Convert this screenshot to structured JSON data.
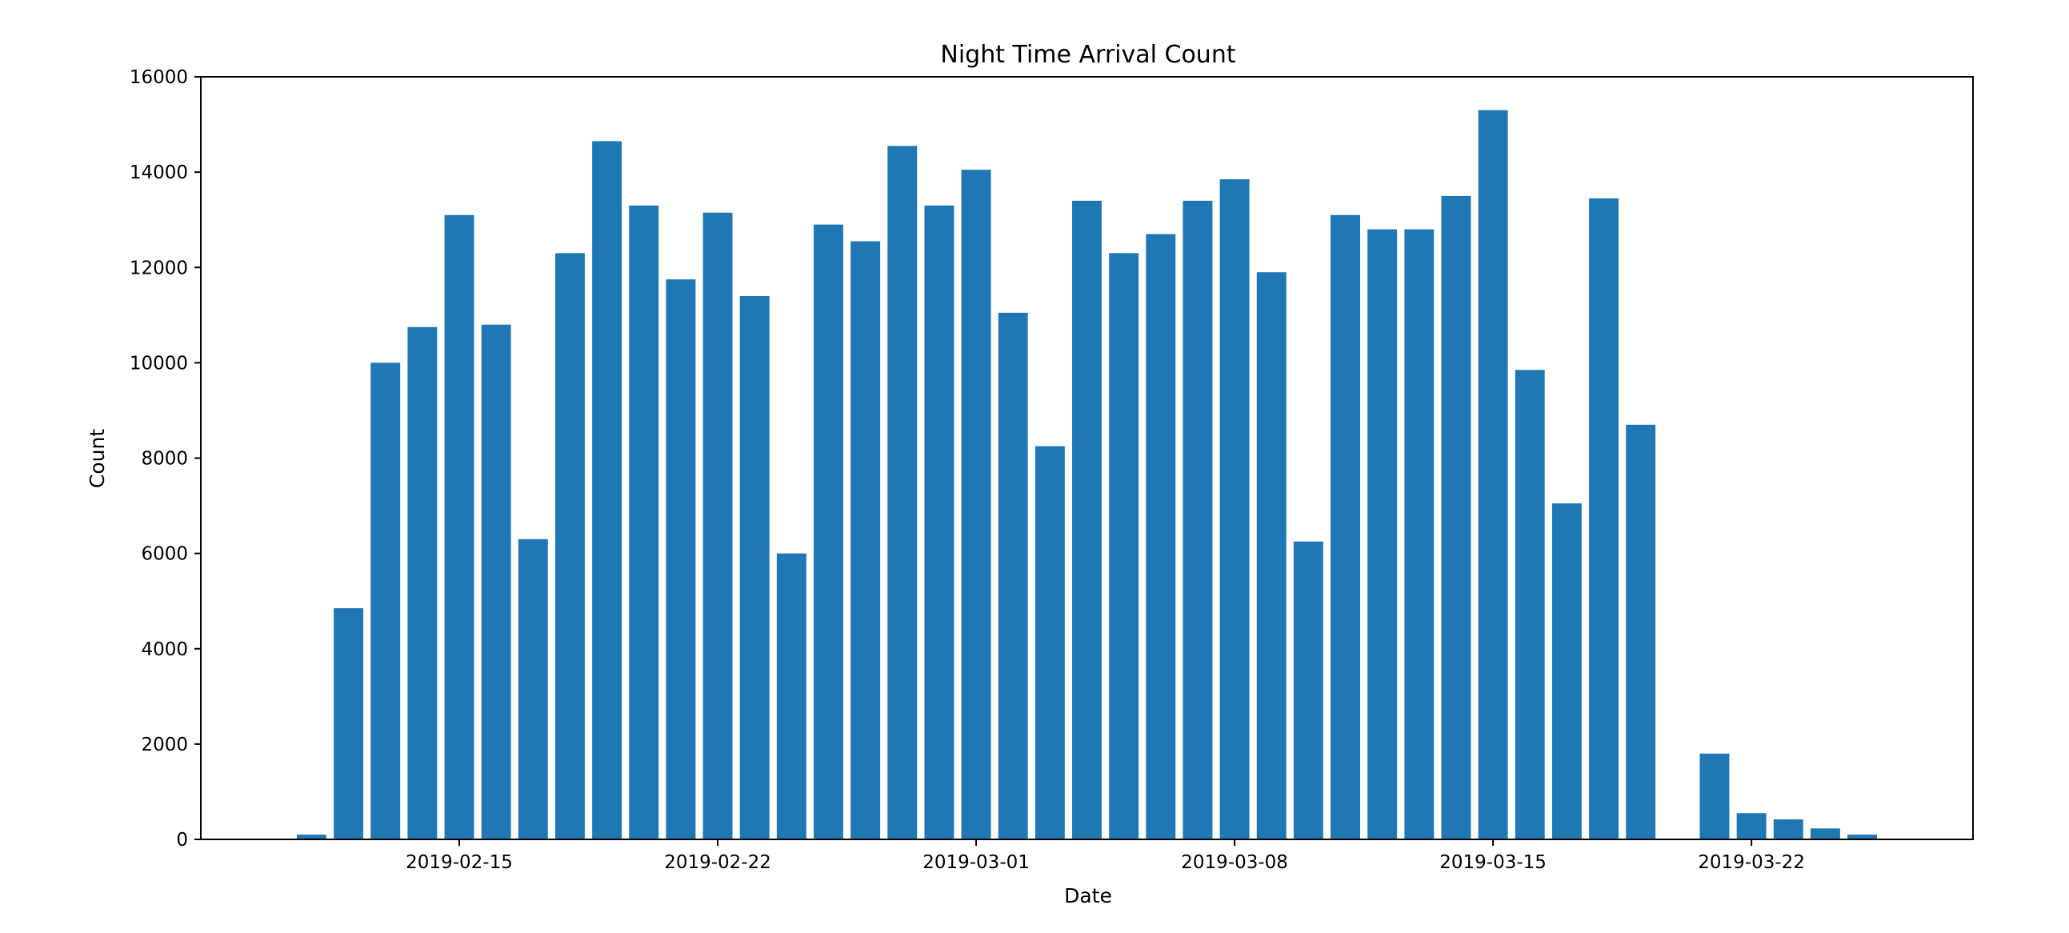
{
  "chart_data": {
    "type": "bar",
    "title": "Night Time Arrival Count",
    "xlabel": "Date",
    "ylabel": "Count",
    "ylim": [
      0,
      16000
    ],
    "xlim": [
      "2019-02-08",
      "2019-03-28"
    ],
    "yticks": [
      0,
      2000,
      4000,
      6000,
      8000,
      10000,
      12000,
      14000,
      16000
    ],
    "xticks": [
      "2019-02-15",
      "2019-02-22",
      "2019-03-01",
      "2019-03-08",
      "2019-03-15",
      "2019-03-22"
    ],
    "grid": false,
    "bar_color": "#1f77b4",
    "x": [
      "2019-02-11",
      "2019-02-12",
      "2019-02-13",
      "2019-02-14",
      "2019-02-15",
      "2019-02-16",
      "2019-02-17",
      "2019-02-18",
      "2019-02-19",
      "2019-02-20",
      "2019-02-21",
      "2019-02-22",
      "2019-02-23",
      "2019-02-24",
      "2019-02-25",
      "2019-02-26",
      "2019-02-27",
      "2019-02-28",
      "2019-03-01",
      "2019-03-02",
      "2019-03-03",
      "2019-03-04",
      "2019-03-05",
      "2019-03-06",
      "2019-03-07",
      "2019-03-08",
      "2019-03-09",
      "2019-03-10",
      "2019-03-11",
      "2019-03-12",
      "2019-03-13",
      "2019-03-14",
      "2019-03-15",
      "2019-03-16",
      "2019-03-17",
      "2019-03-18",
      "2019-03-19",
      "2019-03-21",
      "2019-03-22",
      "2019-03-23",
      "2019-03-24",
      "2019-03-25"
    ],
    "values": [
      100,
      4850,
      10000,
      10750,
      13100,
      10800,
      6300,
      12300,
      14650,
      13300,
      11750,
      13150,
      11400,
      6000,
      12900,
      12550,
      14550,
      13300,
      14050,
      11050,
      8250,
      13400,
      12300,
      12700,
      13400,
      13850,
      11900,
      6250,
      13100,
      12800,
      12800,
      13500,
      15300,
      9850,
      7050,
      13450,
      8700,
      1800,
      550,
      420,
      230,
      100
    ]
  }
}
